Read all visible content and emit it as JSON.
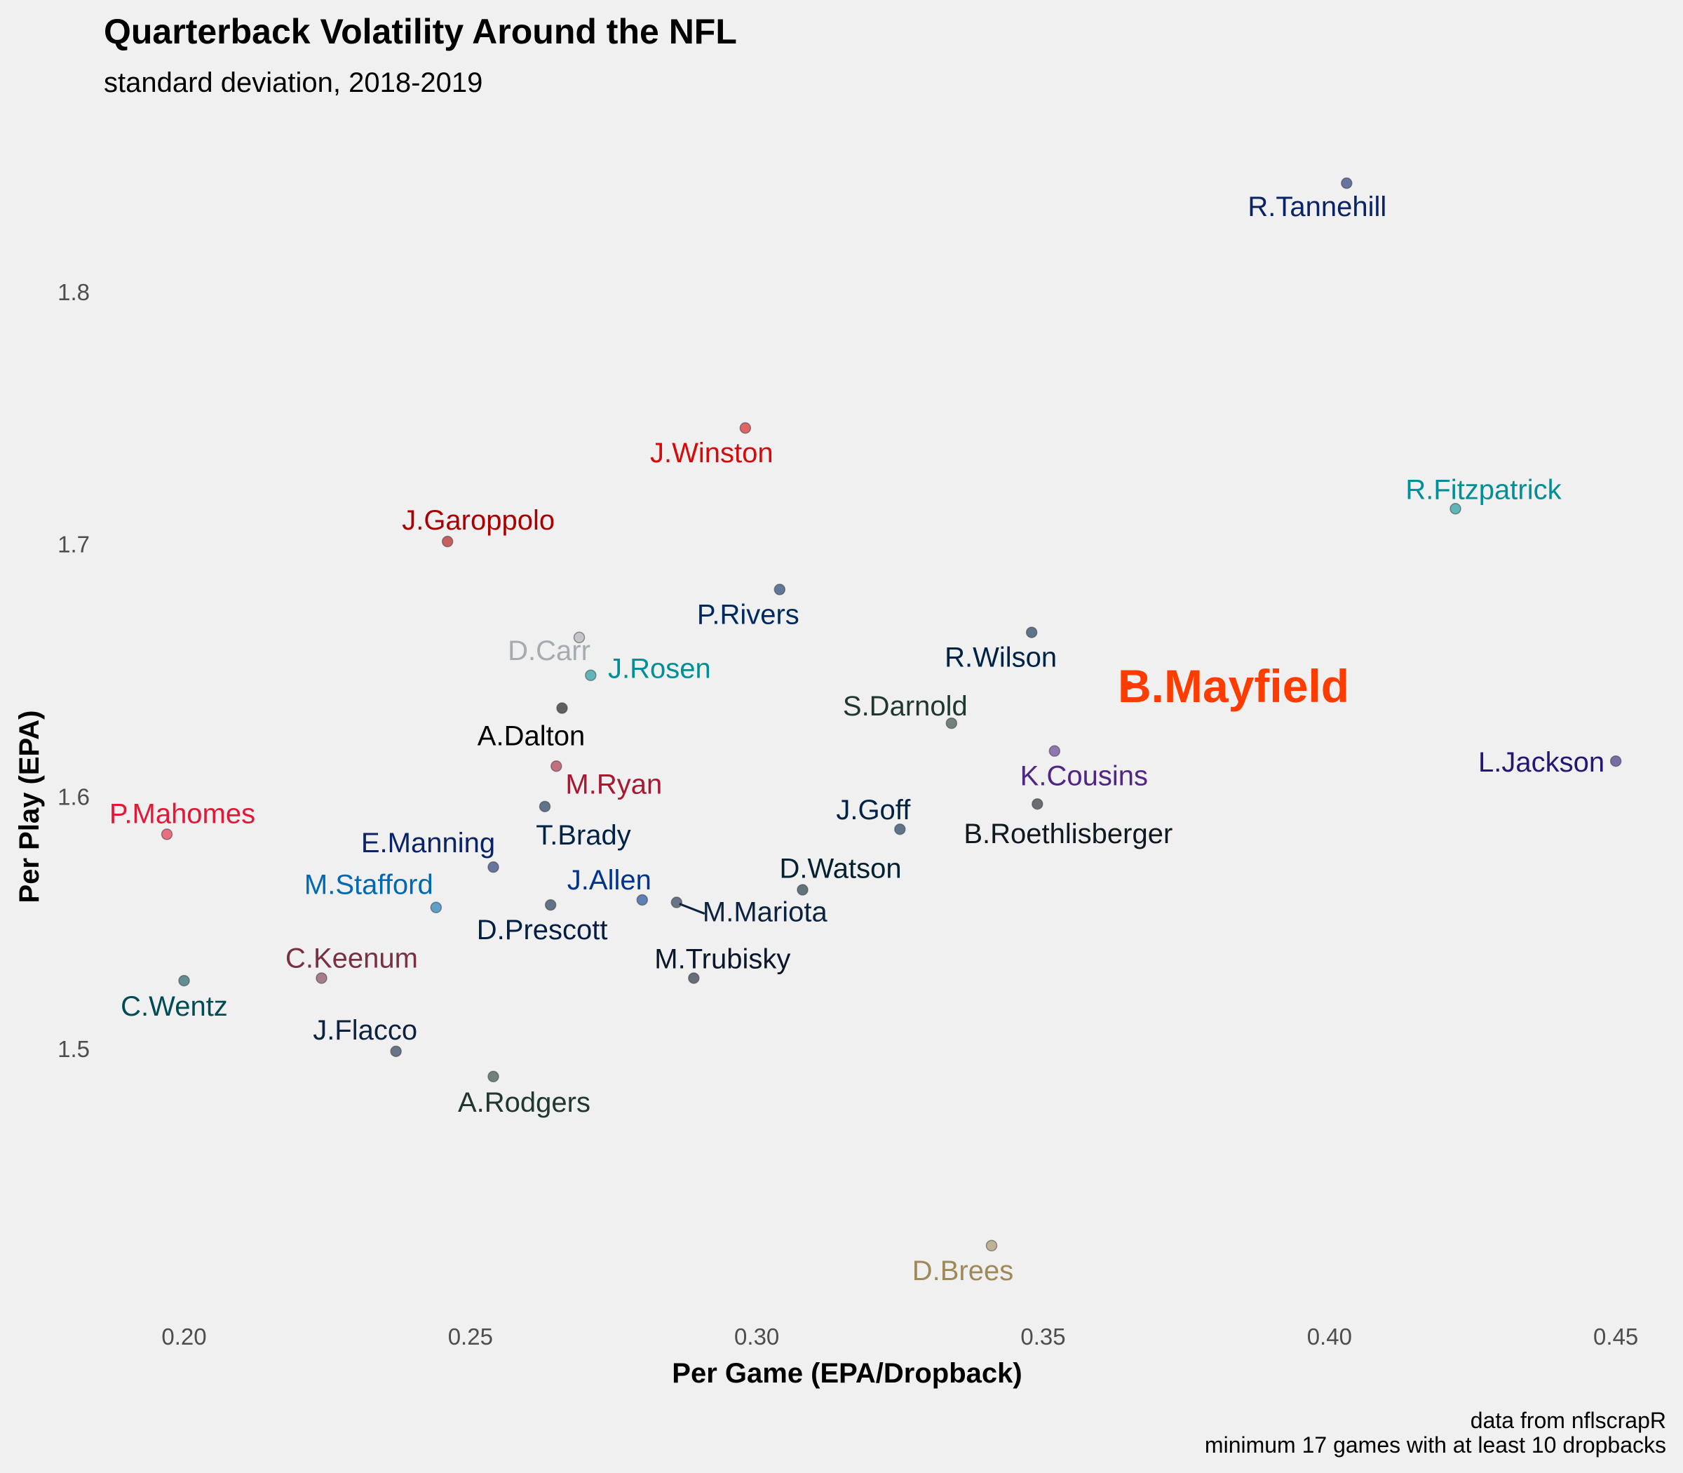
{
  "chart_data": {
    "type": "scatter",
    "title": "Quarterback Volatility Around the NFL",
    "subtitle": "standard deviation, 2018-2019",
    "xlabel": "Per Game (EPA/Dropback)",
    "ylabel": "Per Play (EPA)",
    "xlim": [
      0.185,
      0.455
    ],
    "ylim": [
      1.4,
      1.86
    ],
    "xticks": [
      0.2,
      0.25,
      0.3,
      0.35,
      0.4,
      0.45
    ],
    "xtick_labels": [
      "0.20",
      "0.25",
      "0.30",
      "0.35",
      "0.40",
      "0.45"
    ],
    "yticks": [
      1.5,
      1.6,
      1.7,
      1.8
    ],
    "ytick_labels": [
      "1.5",
      "1.6",
      "1.7",
      "1.8"
    ],
    "grid": false,
    "caption": [
      "data from nflscrapR",
      "minimum 17 games with at least 10 dropbacks"
    ],
    "points": [
      {
        "name": "R.Tannehill",
        "x": 0.403,
        "y": 1.843,
        "color": "#0b2265"
      },
      {
        "name": "J.Winston",
        "x": 0.298,
        "y": 1.746,
        "color": "#d50a0a"
      },
      {
        "name": "R.Fitzpatrick",
        "x": 0.422,
        "y": 1.714,
        "color": "#008e97"
      },
      {
        "name": "J.Garoppolo",
        "x": 0.246,
        "y": 1.701,
        "color": "#aa0000"
      },
      {
        "name": "P.Rivers",
        "x": 0.304,
        "y": 1.682,
        "color": "#002a5e"
      },
      {
        "name": "D.Carr",
        "x": 0.269,
        "y": 1.663,
        "color": "#a5acaf"
      },
      {
        "name": "R.Wilson",
        "x": 0.348,
        "y": 1.665,
        "color": "#002244"
      },
      {
        "name": "J.Rosen",
        "x": 0.271,
        "y": 1.648,
        "color": "#008e97"
      },
      {
        "name": "B.Mayfield",
        "x": 0.365,
        "y": 1.644,
        "color": "#ff3c00",
        "highlight": true
      },
      {
        "name": "A.Dalton",
        "x": 0.266,
        "y": 1.635,
        "color": "#000000"
      },
      {
        "name": "S.Darnold",
        "x": 0.334,
        "y": 1.629,
        "color": "#203731"
      },
      {
        "name": "K.Cousins",
        "x": 0.352,
        "y": 1.618,
        "color": "#4f2683"
      },
      {
        "name": "L.Jackson",
        "x": 0.45,
        "y": 1.614,
        "color": "#241773"
      },
      {
        "name": "M.Ryan",
        "x": 0.265,
        "y": 1.612,
        "color": "#a71930"
      },
      {
        "name": "B.Roethlisberger",
        "x": 0.349,
        "y": 1.597,
        "color": "#101820"
      },
      {
        "name": "T.Brady",
        "x": 0.263,
        "y": 1.596,
        "color": "#002244"
      },
      {
        "name": "J.Goff",
        "x": 0.325,
        "y": 1.587,
        "color": "#002244"
      },
      {
        "name": "P.Mahomes",
        "x": 0.197,
        "y": 1.585,
        "color": "#e31837"
      },
      {
        "name": "E.Manning",
        "x": 0.254,
        "y": 1.572,
        "color": "#0b2265"
      },
      {
        "name": "D.Watson",
        "x": 0.308,
        "y": 1.563,
        "color": "#03202f"
      },
      {
        "name": "J.Allen",
        "x": 0.28,
        "y": 1.559,
        "color": "#00338d"
      },
      {
        "name": "M.Mariota",
        "x": 0.286,
        "y": 1.558,
        "color": "#0c2340"
      },
      {
        "name": "D.Prescott",
        "x": 0.264,
        "y": 1.557,
        "color": "#041e42"
      },
      {
        "name": "M.Stafford",
        "x": 0.244,
        "y": 1.556,
        "color": "#0069b1"
      },
      {
        "name": "C.Keenum",
        "x": 0.224,
        "y": 1.528,
        "color": "#773141"
      },
      {
        "name": "M.Trubisky",
        "x": 0.289,
        "y": 1.528,
        "color": "#0b162a"
      },
      {
        "name": "C.Wentz",
        "x": 0.2,
        "y": 1.527,
        "color": "#004c54"
      },
      {
        "name": "J.Flacco",
        "x": 0.237,
        "y": 1.499,
        "color": "#0c2340"
      },
      {
        "name": "A.Rodgers",
        "x": 0.254,
        "y": 1.489,
        "color": "#203731"
      },
      {
        "name": "D.Brees",
        "x": 0.341,
        "y": 1.422,
        "color": "#9f8958"
      }
    ]
  }
}
